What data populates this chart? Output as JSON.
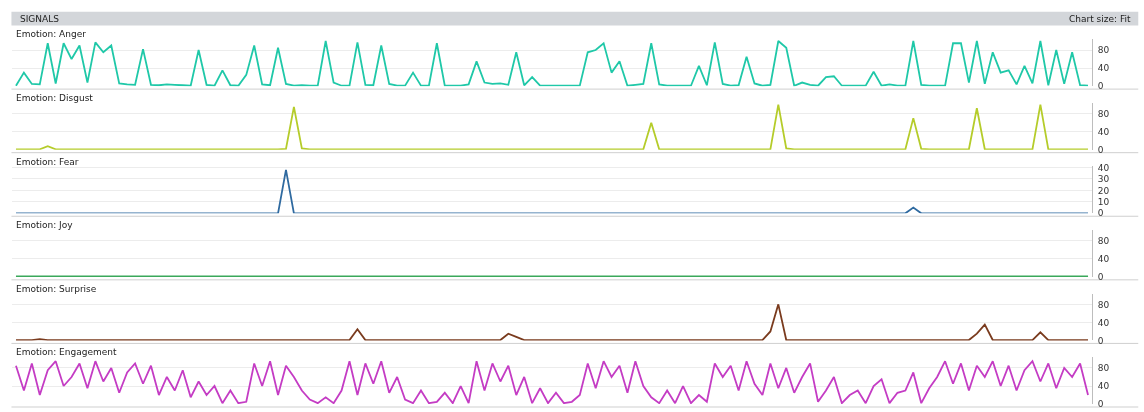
{
  "chart_data": [
    {
      "type": "line",
      "title": "Emotion: Anger",
      "annotations": [
        "SIGNALS",
        "Chart size: Fit"
      ],
      "grid": "y",
      "tick_labels": "y",
      "ylim": [
        0,
        104
      ],
      "yticks": [
        0,
        40,
        80
      ],
      "categories": [
        null,
        null,
        null,
        null,
        null,
        null,
        null,
        null,
        null,
        null,
        null,
        null,
        null,
        null,
        null,
        null,
        null,
        null,
        null,
        null,
        null,
        null,
        null,
        null,
        null,
        null,
        null,
        null,
        null,
        null,
        null,
        null,
        null,
        null,
        null,
        null,
        null,
        null,
        null,
        null,
        null,
        null,
        null,
        null,
        null,
        null,
        null,
        null,
        null,
        null,
        null,
        null,
        null,
        null,
        null,
        null,
        null,
        null,
        null,
        null,
        null,
        null,
        null,
        null,
        null,
        null,
        null,
        null,
        null,
        null,
        null,
        null,
        null,
        null,
        null,
        null,
        null,
        null,
        null,
        null,
        null,
        null,
        null,
        null,
        null,
        null,
        null,
        null,
        null,
        null,
        null,
        null,
        null,
        null,
        null,
        null,
        null,
        null,
        null,
        null,
        null,
        null,
        null,
        null,
        null,
        null,
        null,
        null,
        null,
        null,
        null,
        null,
        null,
        null,
        null,
        null,
        null,
        null,
        null,
        null,
        null,
        null,
        null,
        null,
        null,
        null,
        null,
        null,
        null,
        null,
        null,
        null,
        null,
        null,
        null,
        null
      ],
      "series": [
        {
          "color": "#1fc8a8",
          "values": [
            1,
            30,
            5,
            4,
            95,
            6,
            95,
            60,
            90,
            8,
            97,
            75,
            90,
            6,
            4,
            3,
            82,
            3,
            2,
            4,
            3,
            2,
            1,
            80,
            3,
            1,
            35,
            2,
            1,
            25,
            90,
            4,
            2,
            85,
            5,
            1,
            2,
            1,
            1,
            100,
            8,
            1,
            1,
            97,
            3,
            2,
            90,
            5,
            1,
            1,
            30,
            1,
            1,
            95,
            1,
            1,
            1,
            4,
            55,
            8,
            5,
            6,
            3,
            75,
            2,
            20,
            1,
            1,
            1,
            1,
            1,
            1,
            75,
            80,
            95,
            30,
            55,
            1,
            3,
            5,
            95,
            4,
            1,
            1,
            1,
            1,
            45,
            2,
            97,
            5,
            1,
            2,
            65,
            6,
            1,
            3,
            100,
            85,
            1,
            8,
            3,
            1,
            20,
            22,
            1,
            1,
            1,
            1,
            32,
            1,
            4,
            1,
            1,
            100,
            3,
            1,
            1,
            1,
            95,
            95,
            8,
            100,
            5,
            75,
            30,
            35,
            4,
            45,
            6,
            100,
            2,
            80,
            5,
            75,
            2,
            1
          ]
        }
      ]
    },
    {
      "type": "line",
      "title": "Emotion: Disgust",
      "grid": "y",
      "tick_labels": "y",
      "ylim": [
        0,
        104
      ],
      "yticks": [
        0,
        40,
        80
      ],
      "categories": [
        null,
        null,
        null,
        null,
        null,
        null,
        null,
        null,
        null,
        null,
        null,
        null,
        null,
        null,
        null,
        null,
        null,
        null,
        null,
        null,
        null,
        null,
        null,
        null,
        null,
        null,
        null,
        null,
        null,
        null,
        null,
        null,
        null,
        null,
        null,
        null,
        null,
        null,
        null,
        null,
        null,
        null,
        null,
        null,
        null,
        null,
        null,
        null,
        null,
        null,
        null,
        null,
        null,
        null,
        null,
        null,
        null,
        null,
        null,
        null,
        null,
        null,
        null,
        null,
        null,
        null,
        null,
        null,
        null,
        null,
        null,
        null,
        null,
        null,
        null,
        null,
        null,
        null,
        null,
        null,
        null,
        null,
        null,
        null,
        null,
        null,
        null,
        null,
        null,
        null,
        null,
        null,
        null,
        null,
        null,
        null,
        null,
        null,
        null,
        null,
        null,
        null,
        null,
        null,
        null,
        null,
        null,
        null,
        null,
        null,
        null,
        null,
        null,
        null,
        null,
        null,
        null,
        null,
        null,
        null,
        null,
        null,
        null,
        null,
        null,
        null,
        null,
        null,
        null,
        null,
        null,
        null,
        null,
        null,
        null,
        null
      ],
      "series": [
        {
          "color": "#b5cc2a",
          "values": [
            1,
            1,
            1,
            1,
            8,
            1,
            1,
            1,
            1,
            1,
            1,
            1,
            1,
            1,
            1,
            1,
            1,
            1,
            1,
            1,
            1,
            1,
            1,
            1,
            1,
            1,
            1,
            1,
            1,
            1,
            1,
            1,
            1,
            1,
            2,
            95,
            3,
            1,
            1,
            1,
            1,
            1,
            1,
            1,
            1,
            1,
            1,
            1,
            1,
            1,
            1,
            1,
            1,
            1,
            1,
            1,
            1,
            1,
            1,
            1,
            1,
            1,
            1,
            1,
            1,
            1,
            1,
            1,
            1,
            1,
            1,
            1,
            1,
            1,
            1,
            1,
            1,
            1,
            1,
            1,
            60,
            1,
            1,
            1,
            1,
            1,
            1,
            1,
            1,
            1,
            1,
            1,
            1,
            1,
            1,
            1,
            100,
            3,
            1,
            1,
            1,
            1,
            1,
            1,
            1,
            1,
            1,
            1,
            1,
            1,
            1,
            1,
            1,
            70,
            2,
            1,
            1,
            1,
            1,
            1,
            1,
            92,
            1,
            1,
            1,
            1,
            1,
            1,
            1,
            100,
            1,
            1,
            1,
            1,
            1,
            1
          ]
        }
      ]
    },
    {
      "type": "line",
      "title": "Emotion: Fear",
      "grid": "y",
      "tick_labels": "y",
      "ylim": [
        0,
        41
      ],
      "yticks": [
        0,
        10,
        20,
        30,
        40
      ],
      "categories": [
        null,
        null,
        null,
        null,
        null,
        null,
        null,
        null,
        null,
        null,
        null,
        null,
        null,
        null,
        null,
        null,
        null,
        null,
        null,
        null,
        null,
        null,
        null,
        null,
        null,
        null,
        null,
        null,
        null,
        null,
        null,
        null,
        null,
        null,
        null,
        null,
        null,
        null,
        null,
        null,
        null,
        null,
        null,
        null,
        null,
        null,
        null,
        null,
        null,
        null,
        null,
        null,
        null,
        null,
        null,
        null,
        null,
        null,
        null,
        null,
        null,
        null,
        null,
        null,
        null,
        null,
        null,
        null,
        null,
        null,
        null,
        null,
        null,
        null,
        null,
        null,
        null,
        null,
        null,
        null,
        null,
        null,
        null,
        null,
        null,
        null,
        null,
        null,
        null,
        null,
        null,
        null,
        null,
        null,
        null,
        null,
        null,
        null,
        null,
        null,
        null,
        null,
        null,
        null,
        null,
        null,
        null,
        null,
        null,
        null,
        null,
        null,
        null,
        null,
        null,
        null,
        null,
        null,
        null,
        null,
        null,
        null,
        null,
        null,
        null,
        null,
        null,
        null,
        null,
        null,
        null,
        null,
        null,
        null,
        null,
        null
      ],
      "series": [
        {
          "color": "#2f6aa0",
          "values": [
            0,
            0,
            0,
            0,
            0,
            0,
            0,
            0,
            0,
            0,
            0,
            0,
            0,
            0,
            0,
            0,
            0,
            0,
            0,
            0,
            0,
            0,
            0,
            0,
            0,
            0,
            0,
            0,
            0,
            0,
            0,
            0,
            0,
            0,
            38,
            0,
            0,
            0,
            0,
            0,
            0,
            0,
            0,
            0,
            0,
            0,
            0,
            0,
            0,
            0,
            0,
            0,
            0,
            0,
            0,
            0,
            0,
            0,
            0,
            0,
            0,
            0,
            0,
            0,
            0,
            0,
            0,
            0,
            0,
            0,
            0,
            0,
            0,
            0,
            0,
            0,
            0,
            0,
            0,
            0,
            0,
            0,
            0,
            0,
            0,
            0,
            0,
            0,
            0,
            0,
            0,
            0,
            0,
            0,
            0,
            0,
            0,
            0,
            0,
            0,
            0,
            0,
            0,
            0,
            0,
            0,
            0,
            0,
            0,
            0,
            0,
            0,
            0,
            5,
            0,
            0,
            0,
            0,
            0,
            0,
            0,
            0,
            0,
            0,
            0,
            0,
            0,
            0,
            0,
            0,
            0,
            0,
            0,
            0,
            0,
            0
          ]
        }
      ]
    },
    {
      "type": "line",
      "title": "Emotion: Joy",
      "grid": "y",
      "tick_labels": "y",
      "ylim": [
        0,
        104
      ],
      "yticks": [
        0,
        40,
        80
      ],
      "categories": [
        null,
        null,
        null,
        null,
        null,
        null,
        null,
        null,
        null,
        null,
        null,
        null,
        null,
        null,
        null,
        null,
        null,
        null,
        null,
        null,
        null,
        null,
        null,
        null,
        null,
        null,
        null,
        null,
        null,
        null,
        null,
        null,
        null,
        null,
        null,
        null,
        null,
        null,
        null,
        null,
        null,
        null,
        null,
        null,
        null,
        null,
        null,
        null,
        null,
        null,
        null,
        null,
        null,
        null,
        null,
        null,
        null,
        null,
        null,
        null,
        null,
        null,
        null,
        null,
        null,
        null,
        null,
        null,
        null,
        null,
        null,
        null,
        null,
        null,
        null,
        null,
        null,
        null,
        null,
        null,
        null,
        null,
        null,
        null,
        null,
        null,
        null,
        null,
        null,
        null,
        null,
        null,
        null,
        null,
        null,
        null,
        null,
        null,
        null,
        null,
        null,
        null,
        null,
        null,
        null,
        null,
        null,
        null,
        null,
        null,
        null,
        null,
        null,
        null,
        null,
        null,
        null,
        null,
        null,
        null,
        null,
        null,
        null,
        null,
        null,
        null,
        null,
        null,
        null,
        null,
        null,
        null,
        null,
        null,
        null,
        null
      ],
      "series": [
        {
          "color": "#3aa85a",
          "values": [
            1,
            1,
            1,
            1,
            1,
            1,
            1,
            1,
            1,
            1,
            1,
            1,
            1,
            1,
            1,
            1,
            1,
            1,
            1,
            1,
            1,
            1,
            1,
            1,
            1,
            1,
            1,
            1,
            1,
            1,
            1,
            1,
            1,
            1,
            1,
            1,
            1,
            1,
            1,
            1,
            1,
            1,
            1,
            1,
            1,
            1,
            1,
            1,
            1,
            1,
            1,
            1,
            1,
            1,
            1,
            1,
            1,
            1,
            1,
            1,
            1,
            1,
            1,
            1,
            1,
            1,
            1,
            1,
            1,
            1,
            1,
            1,
            1,
            1,
            1,
            1,
            1,
            1,
            1,
            1,
            1,
            1,
            1,
            1,
            1,
            1,
            1,
            1,
            1,
            1,
            1,
            1,
            1,
            1,
            1,
            1,
            1,
            1,
            1,
            1,
            1,
            1,
            1,
            1,
            1,
            1,
            1,
            1,
            1,
            1,
            1,
            1,
            1,
            1,
            1,
            1,
            1,
            1,
            1,
            1,
            1,
            1,
            1,
            1,
            1,
            1,
            1,
            1,
            1,
            1,
            1,
            1,
            1,
            1,
            1,
            1
          ]
        }
      ]
    },
    {
      "type": "line",
      "title": "Emotion: Surprise",
      "grid": "y",
      "tick_labels": "y",
      "ylim": [
        0,
        104
      ],
      "yticks": [
        0,
        40,
        80
      ],
      "categories": [
        null,
        null,
        null,
        null,
        null,
        null,
        null,
        null,
        null,
        null,
        null,
        null,
        null,
        null,
        null,
        null,
        null,
        null,
        null,
        null,
        null,
        null,
        null,
        null,
        null,
        null,
        null,
        null,
        null,
        null,
        null,
        null,
        null,
        null,
        null,
        null,
        null,
        null,
        null,
        null,
        null,
        null,
        null,
        null,
        null,
        null,
        null,
        null,
        null,
        null,
        null,
        null,
        null,
        null,
        null,
        null,
        null,
        null,
        null,
        null,
        null,
        null,
        null,
        null,
        null,
        null,
        null,
        null,
        null,
        null,
        null,
        null,
        null,
        null,
        null,
        null,
        null,
        null,
        null,
        null,
        null,
        null,
        null,
        null,
        null,
        null,
        null,
        null,
        null,
        null,
        null,
        null,
        null,
        null,
        null,
        null,
        null,
        null,
        null,
        null,
        null,
        null,
        null,
        null,
        null,
        null,
        null,
        null,
        null,
        null,
        null,
        null,
        null,
        null,
        null,
        null,
        null,
        null,
        null,
        null,
        null,
        null,
        null,
        null,
        null,
        null,
        null,
        null,
        null,
        null,
        null,
        null,
        null,
        null,
        null,
        null
      ],
      "series": [
        {
          "color": "#7a3b1e",
          "values": [
            1,
            1,
            1,
            3,
            1,
            1,
            1,
            1,
            1,
            1,
            1,
            1,
            1,
            1,
            1,
            1,
            1,
            1,
            1,
            1,
            1,
            1,
            1,
            1,
            1,
            1,
            1,
            1,
            1,
            1,
            1,
            1,
            1,
            1,
            1,
            1,
            1,
            1,
            1,
            1,
            1,
            1,
            1,
            25,
            1,
            1,
            1,
            1,
            1,
            1,
            1,
            1,
            1,
            1,
            1,
            1,
            1,
            1,
            1,
            1,
            1,
            1,
            15,
            8,
            1,
            1,
            1,
            1,
            1,
            1,
            1,
            1,
            1,
            1,
            1,
            1,
            1,
            1,
            1,
            1,
            1,
            1,
            1,
            1,
            1,
            1,
            1,
            1,
            1,
            1,
            1,
            1,
            1,
            1,
            1,
            20,
            80,
            1,
            1,
            1,
            1,
            1,
            1,
            1,
            1,
            1,
            1,
            1,
            1,
            1,
            1,
            1,
            1,
            1,
            1,
            1,
            1,
            1,
            1,
            1,
            1,
            15,
            35,
            1,
            1,
            1,
            1,
            1,
            1,
            18,
            1,
            1,
            1,
            1,
            1,
            1
          ]
        }
      ]
    },
    {
      "type": "line",
      "title": "Emotion: Engagement",
      "grid": "y",
      "tick_labels": "y",
      "ylim": [
        0,
        104
      ],
      "yticks": [
        0,
        40,
        80
      ],
      "categories": [
        null,
        null,
        null,
        null,
        null,
        null,
        null,
        null,
        null,
        null,
        null,
        null,
        null,
        null,
        null,
        null,
        null,
        null,
        null,
        null,
        null,
        null,
        null,
        null,
        null,
        null,
        null,
        null,
        null,
        null,
        null,
        null,
        null,
        null,
        null,
        null,
        null,
        null,
        null,
        null,
        null,
        null,
        null,
        null,
        null,
        null,
        null,
        null,
        null,
        null,
        null,
        null,
        null,
        null,
        null,
        null,
        null,
        null,
        null,
        null,
        null,
        null,
        null,
        null,
        null,
        null,
        null,
        null,
        null,
        null,
        null,
        null,
        null,
        null,
        null,
        null,
        null,
        null,
        null,
        null,
        null,
        null,
        null,
        null,
        null,
        null,
        null,
        null,
        null,
        null,
        null,
        null,
        null,
        null,
        null,
        null,
        null,
        null,
        null,
        null,
        null,
        null,
        null,
        null,
        null,
        null,
        null,
        null,
        null,
        null,
        null,
        null,
        null,
        null,
        null,
        null,
        null,
        null,
        null,
        null,
        null,
        null,
        null,
        null,
        null,
        null,
        null,
        null,
        null,
        null,
        null,
        null,
        null,
        null,
        null,
        null
      ],
      "series": [
        {
          "color": "#c43cc4",
          "values": [
            85,
            30,
            90,
            20,
            75,
            95,
            40,
            60,
            90,
            35,
            95,
            50,
            80,
            25,
            70,
            90,
            45,
            85,
            20,
            60,
            30,
            75,
            15,
            50,
            20,
            40,
            2,
            30,
            2,
            5,
            90,
            40,
            95,
            20,
            85,
            60,
            30,
            10,
            2,
            15,
            2,
            30,
            95,
            20,
            90,
            45,
            95,
            25,
            60,
            10,
            2,
            30,
            2,
            5,
            25,
            2,
            40,
            2,
            95,
            30,
            90,
            50,
            85,
            20,
            60,
            2,
            35,
            2,
            25,
            2,
            5,
            20,
            90,
            35,
            95,
            60,
            85,
            25,
            95,
            40,
            15,
            2,
            30,
            2,
            40,
            2,
            20,
            5,
            90,
            60,
            85,
            30,
            95,
            45,
            20,
            90,
            35,
            80,
            25,
            60,
            90,
            5,
            30,
            60,
            2,
            20,
            30,
            2,
            40,
            55,
            2,
            25,
            30,
            70,
            2,
            35,
            60,
            95,
            45,
            90,
            30,
            85,
            60,
            95,
            40,
            85,
            30,
            75,
            95,
            50,
            90,
            35,
            80,
            60,
            90,
            20
          ]
        }
      ]
    }
  ]
}
